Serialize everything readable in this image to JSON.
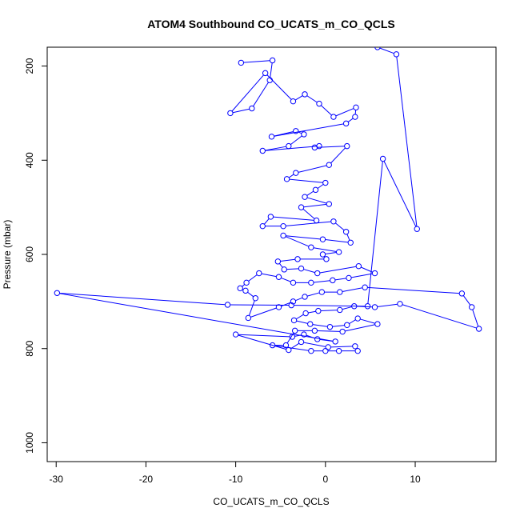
{
  "chart_data": {
    "type": "scatter",
    "title": "ATOM4 Southbound CO_UCATS_m_CO_QCLS",
    "xlabel": "CO_UCATS_m_CO_QCLS",
    "ylabel": "Pressure (mbar)",
    "xlim": [
      -31,
      19
    ],
    "ylim": [
      1040,
      160
    ],
    "y_reversed": true,
    "grid": false,
    "connected": true,
    "marker": "open-circle",
    "series_color": "#0000ff",
    "x_ticks": [
      -30,
      -20,
      -10,
      0,
      10
    ],
    "y_ticks": [
      200,
      400,
      600,
      800,
      1000
    ],
    "series": [
      {
        "points": [
          [
            -9.4,
            193
          ],
          [
            -5.9,
            188
          ],
          [
            -6.2,
            230
          ],
          [
            -8.2,
            290
          ],
          [
            -10.6,
            300
          ],
          [
            -6.7,
            215
          ],
          [
            -3.6,
            275
          ],
          [
            -2.3,
            260
          ],
          [
            -0.7,
            280
          ],
          [
            0.9,
            308
          ],
          [
            3.4,
            288
          ],
          [
            3.3,
            308
          ],
          [
            2.3,
            322
          ],
          [
            -6.0,
            350
          ],
          [
            -3.3,
            338
          ],
          [
            -2.4,
            345
          ],
          [
            -4.1,
            370
          ],
          [
            -7.0,
            380
          ],
          [
            -0.7,
            370
          ],
          [
            -1.2,
            373
          ],
          [
            2.4,
            370
          ],
          [
            0.4,
            410
          ],
          [
            -3.3,
            427
          ],
          [
            -4.3,
            440
          ],
          [
            0.0,
            448
          ],
          [
            -1.1,
            463
          ],
          [
            -2.3,
            478
          ],
          [
            0.4,
            493
          ],
          [
            -2.7,
            500
          ],
          [
            -1.0,
            528
          ],
          [
            -6.1,
            520
          ],
          [
            -7.0,
            540
          ],
          [
            -4.7,
            540
          ],
          [
            0.9,
            530
          ],
          [
            2.3,
            552
          ],
          [
            2.8,
            575
          ],
          [
            -0.3,
            568
          ],
          [
            -4.7,
            560
          ],
          [
            -1.6,
            585
          ],
          [
            1.5,
            595
          ],
          [
            -0.3,
            600
          ],
          [
            0.1,
            610
          ],
          [
            -3.1,
            610
          ],
          [
            -5.3,
            615
          ],
          [
            -4.6,
            632
          ],
          [
            -2.7,
            630
          ],
          [
            -0.9,
            640
          ],
          [
            3.7,
            625
          ],
          [
            5.5,
            640
          ],
          [
            2.6,
            650
          ],
          [
            0.8,
            655
          ],
          [
            -1.6,
            660
          ],
          [
            -3.6,
            660
          ],
          [
            -5.2,
            648
          ],
          [
            -7.4,
            640
          ],
          [
            -8.8,
            660
          ],
          [
            -9.5,
            672
          ],
          [
            -8.9,
            677
          ],
          [
            -7.8,
            693
          ],
          [
            -8.6,
            735
          ],
          [
            -5.2,
            712
          ],
          [
            -3.6,
            700
          ],
          [
            -2.3,
            690
          ],
          [
            -0.4,
            680
          ],
          [
            1.6,
            680
          ],
          [
            4.4,
            670
          ],
          [
            15.2,
            683
          ],
          [
            16.3,
            712
          ],
          [
            17.1,
            758
          ],
          [
            8.3,
            705
          ],
          [
            5.5,
            712
          ],
          [
            3.2,
            710
          ],
          [
            1.6,
            718
          ],
          [
            -0.8,
            720
          ],
          [
            -2.2,
            725
          ],
          [
            -3.5,
            740
          ],
          [
            -1.7,
            748
          ],
          [
            0.5,
            754
          ],
          [
            2.4,
            750
          ],
          [
            3.6,
            736
          ],
          [
            5.8,
            748
          ],
          [
            1.9,
            764
          ],
          [
            -1.2,
            762
          ],
          [
            -3.4,
            762
          ],
          [
            -4.4,
            793
          ],
          [
            -5.9,
            793
          ],
          [
            -1.6,
            805
          ],
          [
            0.0,
            805
          ],
          [
            1.5,
            805
          ],
          [
            3.6,
            805
          ],
          [
            3.3,
            795
          ],
          [
            0.3,
            797
          ],
          [
            -2.7,
            786
          ],
          [
            -4.1,
            803
          ],
          [
            -10.0,
            770
          ],
          [
            -3.7,
            775
          ],
          [
            -2.4,
            770
          ],
          [
            -0.9,
            780
          ],
          [
            1.1,
            785
          ],
          [
            -29.9,
            682
          ],
          [
            -10.9,
            707
          ],
          [
            -3.8,
            708
          ],
          [
            4.7,
            710
          ],
          [
            6.4,
            397
          ],
          [
            10.2,
            546
          ],
          [
            7.9,
            175
          ],
          [
            5.8,
            160
          ]
        ]
      }
    ]
  }
}
